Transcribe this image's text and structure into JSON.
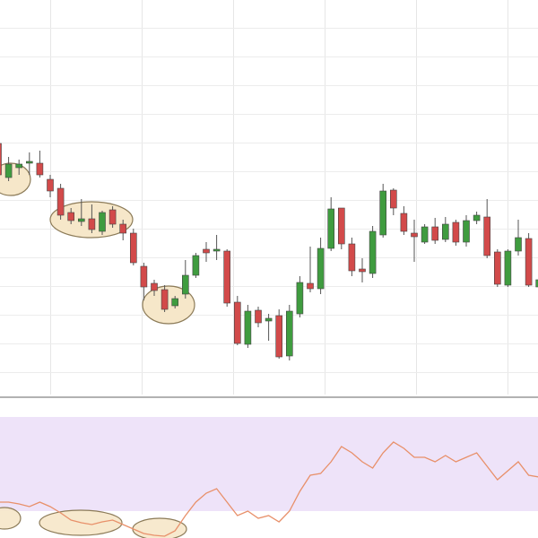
{
  "chart_data": [
    {
      "type": "candlestick",
      "up_color": "#3f9c3f",
      "down_color": "#d24a4a",
      "ylim": [
        0,
        440
      ],
      "open": [
        280,
        242,
        253,
        258,
        258,
        240,
        230,
        203,
        193,
        196,
        182,
        206,
        190,
        180,
        143,
        124,
        117,
        99,
        112,
        133,
        162,
        160,
        160,
        103,
        56,
        94,
        82,
        88,
        43,
        90,
        124,
        118,
        163,
        208,
        168,
        140,
        135,
        178,
        228,
        202,
        180,
        170,
        187,
        173,
        192,
        170,
        194,
        198,
        159,
        122,
        160,
        174,
        120
      ],
      "high": [
        282,
        265,
        262,
        270,
        272,
        245,
        235,
        208,
        218,
        212,
        205,
        210,
        195,
        185,
        147,
        128,
        122,
        110,
        150,
        158,
        170,
        178,
        162,
        110,
        100,
        98,
        90,
        95,
        100,
        132,
        165,
        175,
        220,
        208,
        175,
        152,
        188,
        235,
        230,
        210,
        195,
        190,
        197,
        198,
        195,
        200,
        204,
        218,
        162,
        162,
        195,
        180,
        135
      ],
      "low": [
        240,
        238,
        245,
        245,
        242,
        220,
        195,
        190,
        188,
        180,
        178,
        186,
        172,
        144,
        105,
        110,
        92,
        96,
        107,
        130,
        148,
        150,
        98,
        55,
        52,
        75,
        60,
        40,
        38,
        86,
        114,
        112,
        160,
        162,
        132,
        125,
        130,
        175,
        200,
        178,
        148,
        168,
        168,
        170,
        166,
        165,
        190,
        152,
        120,
        120,
        155,
        120,
        115
      ],
      "close": [
        245,
        257,
        257,
        260,
        245,
        227,
        200,
        194,
        196,
        184,
        203,
        190,
        180,
        147,
        120,
        116,
        95,
        107,
        133,
        155,
        158,
        162,
        102,
        57,
        93,
        80,
        85,
        42,
        93,
        125,
        118,
        163,
        207,
        168,
        138,
        137,
        182,
        227,
        208,
        182,
        176,
        187,
        172,
        190,
        170,
        194,
        200,
        155,
        123,
        160,
        175,
        122,
        128
      ]
    },
    {
      "type": "line",
      "color": "#e8906a",
      "band_color": "#eadcf8",
      "band": [
        30,
        135
      ],
      "ylim": [
        0,
        155
      ],
      "values": [
        40,
        40,
        38,
        35,
        40,
        35,
        28,
        20,
        17,
        15,
        18,
        20,
        15,
        10,
        5,
        3,
        2,
        8,
        25,
        40,
        50,
        55,
        40,
        25,
        30,
        22,
        25,
        18,
        30,
        52,
        70,
        72,
        85,
        102,
        95,
        85,
        78,
        95,
        107,
        100,
        90,
        90,
        85,
        92,
        85,
        90,
        95,
        80,
        65,
        75,
        85,
        70,
        68
      ]
    }
  ]
}
